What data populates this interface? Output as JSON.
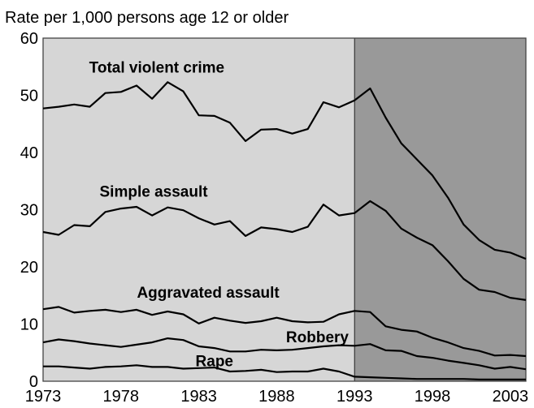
{
  "chart_data": {
    "type": "line",
    "ylabel": "Rate per 1,000 persons age 12 or older",
    "x": [
      1973,
      1974,
      1975,
      1976,
      1977,
      1978,
      1979,
      1980,
      1981,
      1982,
      1983,
      1984,
      1985,
      1986,
      1987,
      1988,
      1989,
      1990,
      1991,
      1992,
      1993,
      1994,
      1995,
      1996,
      1997,
      1998,
      1999,
      2000,
      2001,
      2002,
      2003,
      2004
    ],
    "x_ticks": [
      "1973",
      "1978",
      "1983",
      "1988",
      "1993",
      "1998",
      "2003"
    ],
    "ylim": [
      0,
      60
    ],
    "y_ticks": [
      "0",
      "10",
      "20",
      "30",
      "40",
      "50",
      "60"
    ],
    "shaded_from": 1993,
    "colors": {
      "left_region": "#d6d6d6",
      "right_region": "#999999",
      "lines": "#000000"
    },
    "series": [
      {
        "name": "Total violent crime",
        "values": [
          47.7,
          48.0,
          48.4,
          48.0,
          50.4,
          50.6,
          51.7,
          49.4,
          52.3,
          50.7,
          46.5,
          46.4,
          45.2,
          42.0,
          44.0,
          44.1,
          43.3,
          44.1,
          48.8,
          47.9,
          49.1,
          51.2,
          46.1,
          41.6,
          38.8,
          36.0,
          32.1,
          27.4,
          24.7,
          23.0,
          22.5,
          21.4
        ]
      },
      {
        "name": "Simple assault",
        "values": [
          26.1,
          25.6,
          27.3,
          27.1,
          29.6,
          30.2,
          30.5,
          29.0,
          30.4,
          29.9,
          28.5,
          27.4,
          28.0,
          25.4,
          26.9,
          26.6,
          26.1,
          27.0,
          30.9,
          29.0,
          29.4,
          31.5,
          29.8,
          26.7,
          25.1,
          23.8,
          21.0,
          17.9,
          16.0,
          15.6,
          14.6,
          14.2
        ]
      },
      {
        "name": "Aggravated assault",
        "values": [
          12.6,
          13.0,
          12.0,
          12.3,
          12.5,
          12.1,
          12.5,
          11.6,
          12.2,
          11.7,
          10.1,
          11.1,
          10.6,
          10.2,
          10.5,
          11.1,
          10.5,
          10.3,
          10.4,
          11.7,
          12.3,
          12.1,
          9.6,
          9.0,
          8.7,
          7.6,
          6.8,
          5.8,
          5.3,
          4.5,
          4.6,
          4.4
        ]
      },
      {
        "name": "Robbery",
        "values": [
          6.8,
          7.3,
          7.0,
          6.6,
          6.3,
          6.0,
          6.4,
          6.8,
          7.5,
          7.2,
          6.1,
          5.8,
          5.2,
          5.2,
          5.5,
          5.4,
          5.5,
          5.8,
          6.1,
          6.3,
          6.2,
          6.5,
          5.4,
          5.3,
          4.4,
          4.1,
          3.6,
          3.2,
          2.8,
          2.2,
          2.5,
          2.1
        ]
      },
      {
        "name": "Rape",
        "values": [
          2.6,
          2.6,
          2.4,
          2.2,
          2.5,
          2.6,
          2.8,
          2.5,
          2.5,
          2.2,
          2.3,
          2.4,
          1.7,
          1.8,
          2.0,
          1.6,
          1.7,
          1.7,
          2.2,
          1.7,
          0.8,
          0.7,
          0.6,
          0.5,
          0.4,
          0.4,
          0.4,
          0.4,
          0.3,
          0.3,
          0.3,
          0.3
        ]
      }
    ]
  }
}
